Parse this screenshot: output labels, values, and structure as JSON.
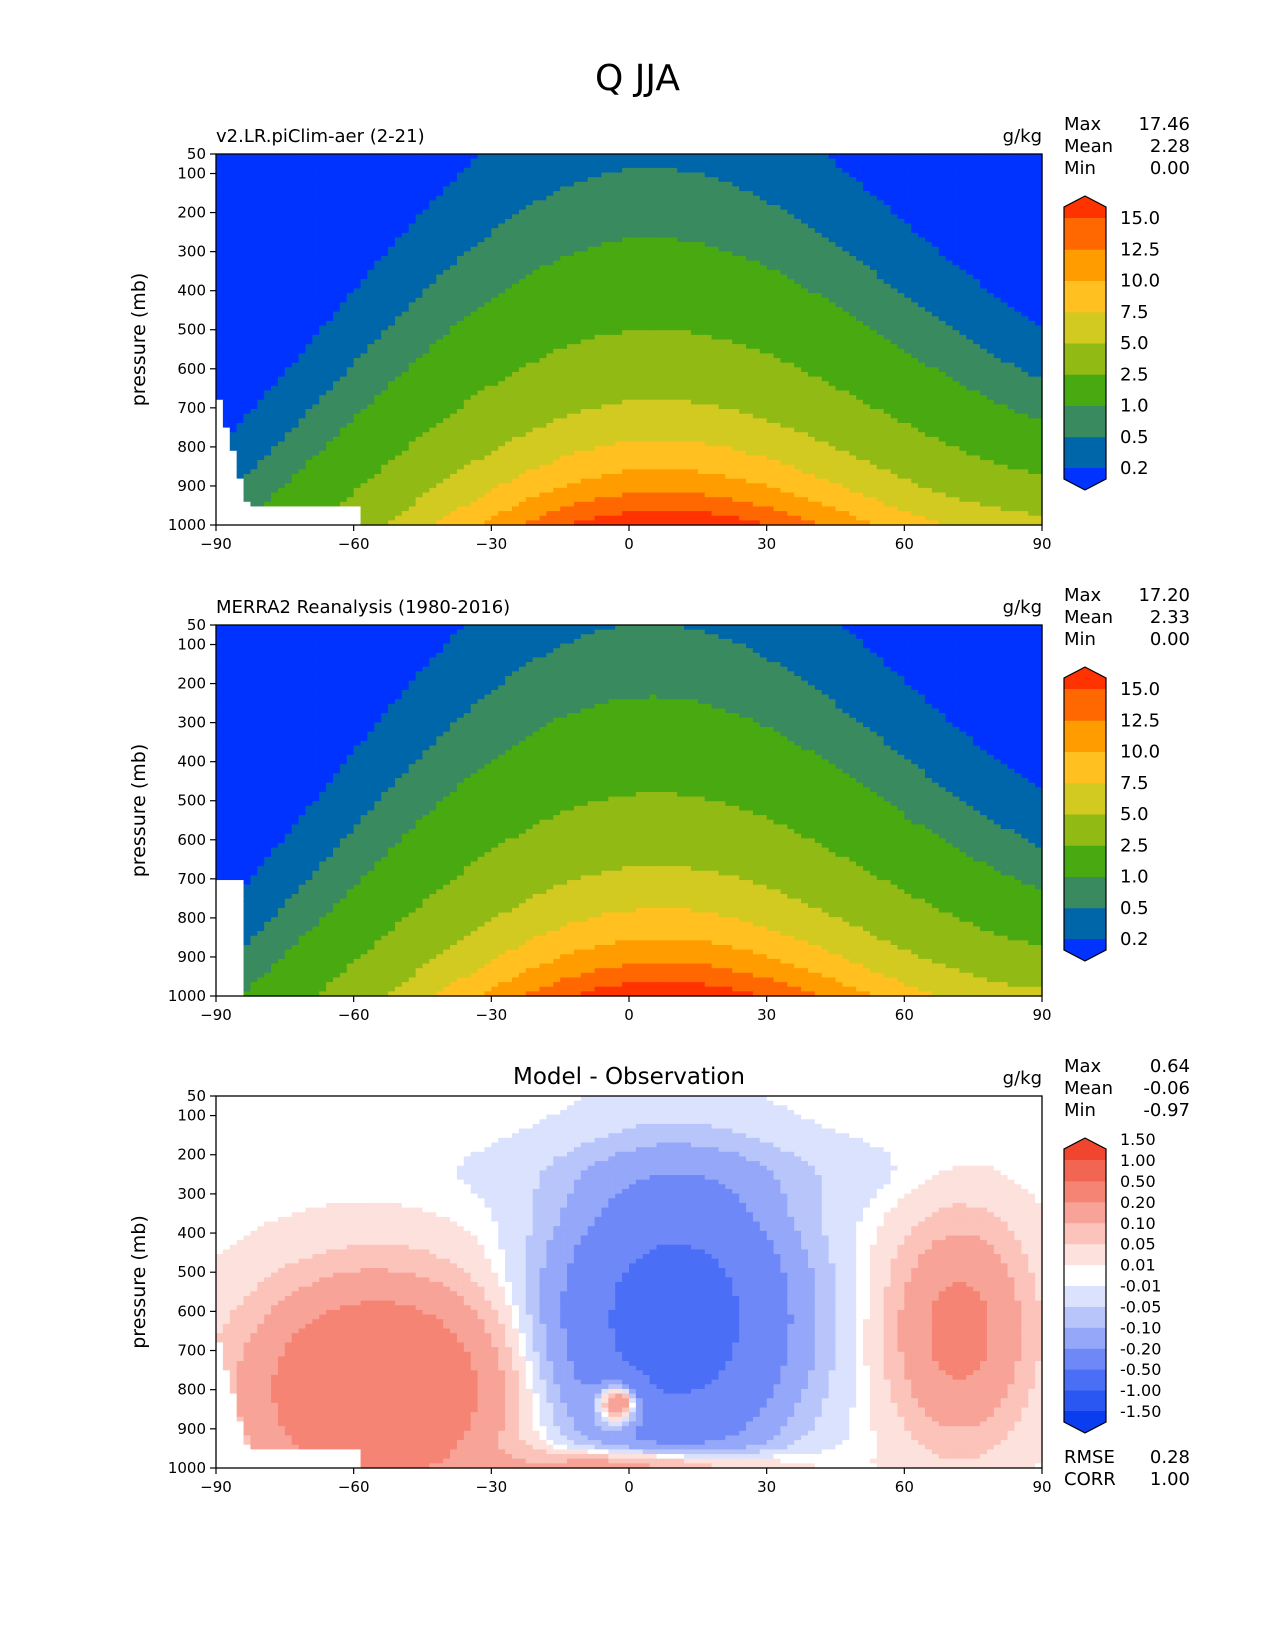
{
  "page": {
    "title": "Q JJA"
  },
  "colors": {
    "abs_levels": [
      "#0033ff",
      "#0066aa",
      "#3a8a60",
      "#48aa10",
      "#92ba15",
      "#d2ca20",
      "#ffc020",
      "#ff9c00",
      "#ff6800",
      "#ff3300"
    ],
    "diff_levels": [
      "#0a3cf0",
      "#2a57f2",
      "#4a6ef5",
      "#6e88f7",
      "#95a7f8",
      "#b8c5fa",
      "#dbe2fd",
      "#ffffff",
      "#fde1dd",
      "#fbc3ba",
      "#f8a397",
      "#f58474",
      "#f26552",
      "#f0462f"
    ],
    "missing": "#ffffff"
  },
  "chart_data": [
    {
      "type": "heatmap",
      "panel": "top",
      "title": "v2.LR.piClim-aer (2-21)",
      "units": "g/kg",
      "ylabel": "pressure (mb)",
      "xlabel": "",
      "xlim": [
        -90,
        90
      ],
      "ylim": [
        1000,
        50
      ],
      "xticks": [
        "−90",
        "−60",
        "−30",
        "0",
        "30",
        "60",
        "90"
      ],
      "yticks": [
        "50",
        "100",
        "200",
        "300",
        "400",
        "500",
        "600",
        "700",
        "800",
        "900",
        "1000"
      ],
      "stats": [
        {
          "label": "Max",
          "value": "17.46"
        },
        {
          "label": "Mean",
          "value": "2.28"
        },
        {
          "label": "Min",
          "value": "0.00"
        }
      ],
      "colorbar": {
        "levels": [
          0.2,
          0.5,
          1.0,
          2.5,
          5.0,
          7.5,
          10.0,
          12.5,
          15.0
        ],
        "tick_labels": [
          "15.0",
          "12.5",
          "10.0",
          "7.5",
          "5.0",
          "2.5",
          "1.0",
          "0.5",
          "0.2"
        ],
        "extend": "both"
      },
      "field": {
        "surface_q": 17.4,
        "peak_lat": 8,
        "lat_width": 55,
        "scale_height_mb": 215,
        "north_surface_q": 4.5
      }
    },
    {
      "type": "heatmap",
      "panel": "middle",
      "title": "MERRA2 Reanalysis (1980-2016)",
      "units": "g/kg",
      "ylabel": "pressure (mb)",
      "xlabel": "",
      "xlim": [
        -90,
        90
      ],
      "ylim": [
        1000,
        50
      ],
      "xticks": [
        "−90",
        "−60",
        "−30",
        "0",
        "30",
        "60",
        "90"
      ],
      "yticks": [
        "50",
        "100",
        "200",
        "300",
        "400",
        "500",
        "600",
        "700",
        "800",
        "900",
        "1000"
      ],
      "stats": [
        {
          "label": "Max",
          "value": "17.20"
        },
        {
          "label": "Mean",
          "value": "2.33"
        },
        {
          "label": "Min",
          "value": "0.00"
        }
      ],
      "colorbar": {
        "levels": [
          0.2,
          0.5,
          1.0,
          2.5,
          5.0,
          7.5,
          10.0,
          12.5,
          15.0
        ],
        "tick_labels": [
          "15.0",
          "12.5",
          "10.0",
          "7.5",
          "5.0",
          "2.5",
          "1.0",
          "0.5",
          "0.2"
        ],
        "extend": "both"
      },
      "field": {
        "surface_q": 17.2,
        "peak_lat": 8,
        "lat_width": 55,
        "scale_height_mb": 225,
        "north_surface_q": 4.2
      }
    },
    {
      "type": "heatmap",
      "panel": "bottom",
      "title": "Model - Observation",
      "units": "g/kg",
      "ylabel": "pressure (mb)",
      "xlabel": "",
      "xlim": [
        -90,
        90
      ],
      "ylim": [
        1000,
        50
      ],
      "xticks": [
        "−90",
        "−60",
        "−30",
        "0",
        "30",
        "60",
        "90"
      ],
      "yticks": [
        "50",
        "100",
        "200",
        "300",
        "400",
        "500",
        "600",
        "700",
        "800",
        "900",
        "1000"
      ],
      "stats": [
        {
          "label": "Max",
          "value": "0.64"
        },
        {
          "label": "Mean",
          "value": "-0.06"
        },
        {
          "label": "Min",
          "value": "-0.97"
        }
      ],
      "extra_stats": [
        {
          "label": "RMSE",
          "value": "0.28"
        },
        {
          "label": "CORR",
          "value": "1.00"
        }
      ],
      "colorbar": {
        "levels": [
          -1.5,
          -1.0,
          -0.5,
          -0.2,
          -0.1,
          -0.05,
          -0.01,
          0.01,
          0.05,
          0.1,
          0.2,
          0.5,
          1.0,
          1.5
        ],
        "tick_labels": [
          "1.50",
          "1.00",
          "0.50",
          "0.20",
          "0.10",
          "0.05",
          "0.01",
          "-0.01",
          "-0.05",
          "-0.10",
          "-0.20",
          "-0.50",
          "-1.00",
          "-1.50"
        ],
        "extend": "both"
      },
      "field": {
        "neg_center_lat": 10,
        "neg_amp": -0.75,
        "pos_south_amp": 0.45,
        "pos_north_amp": 0.25,
        "pos_tropic_amp": 0.5
      }
    }
  ]
}
